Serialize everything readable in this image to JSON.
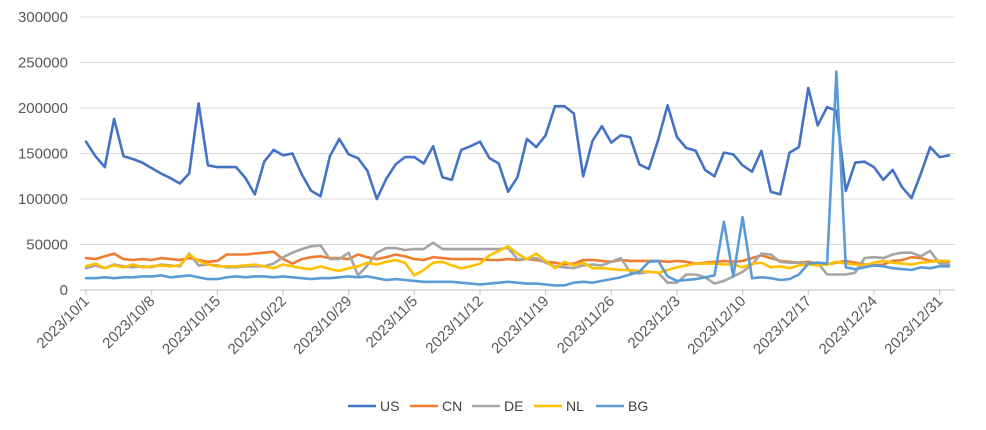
{
  "chart_data": {
    "type": "line",
    "title": "",
    "xlabel": "",
    "ylabel": "",
    "ylim": [
      0,
      300000
    ],
    "ytick_values": [
      0,
      50000,
      100000,
      150000,
      200000,
      250000,
      300000
    ],
    "ytick_labels": [
      "0",
      "50000",
      "100000",
      "150000",
      "200000",
      "250000",
      "300000"
    ],
    "x_tick_labels": [
      "2023/10/1",
      "2023/10/8",
      "2023/10/15",
      "2023/10/22",
      "2023/10/29",
      "2023/11/5",
      "2023/11/12",
      "2023/11/19",
      "2023/11/26",
      "2023/12/3",
      "2023/12/10",
      "2023/12/17",
      "2023/12/24",
      "2023/12/31"
    ],
    "x_tick_indices": [
      0,
      7,
      14,
      21,
      28,
      35,
      42,
      49,
      56,
      63,
      70,
      77,
      84,
      91
    ],
    "grid": "horizontal",
    "legend_position": "bottom",
    "series": [
      {
        "name": "US",
        "color": "#4472C4",
        "values": [
          163000,
          147000,
          135000,
          188000,
          147000,
          144000,
          140000,
          134000,
          128000,
          123000,
          117000,
          128000,
          205000,
          137000,
          135000,
          135000,
          135000,
          123000,
          105000,
          141000,
          154000,
          148000,
          150000,
          127000,
          109000,
          103000,
          147000,
          166000,
          149000,
          145000,
          131000,
          100000,
          122000,
          138000,
          146000,
          146000,
          139000,
          158000,
          124000,
          121000,
          154000,
          158000,
          163000,
          145000,
          139000,
          108000,
          124000,
          166000,
          157000,
          170000,
          202000,
          202000,
          194000,
          125000,
          164000,
          180000,
          162000,
          170000,
          168000,
          138000,
          133000,
          165000,
          203000,
          168000,
          156000,
          153000,
          132000,
          125000,
          151000,
          149000,
          137000,
          130000,
          153000,
          108000,
          105000,
          151000,
          157000,
          222000,
          181000,
          201000,
          197000,
          109000,
          140000,
          141000,
          135000,
          121000,
          132000,
          113000,
          101000,
          128000,
          157000,
          146000,
          148000
        ]
      },
      {
        "name": "CN",
        "color": "#ED7D31",
        "values": [
          35000,
          34000,
          37000,
          40000,
          34000,
          33000,
          34000,
          33000,
          35000,
          34000,
          33000,
          35000,
          33000,
          31000,
          32000,
          39000,
          39000,
          39000,
          40000,
          41000,
          42000,
          34000,
          29000,
          34000,
          36000,
          37000,
          35000,
          35000,
          34000,
          39000,
          36000,
          34000,
          36000,
          39000,
          37000,
          34000,
          33000,
          36000,
          35000,
          34000,
          34000,
          34000,
          34000,
          33000,
          33000,
          34000,
          33000,
          34000,
          33000,
          31000,
          30000,
          28000,
          29000,
          33000,
          33000,
          32000,
          31000,
          33000,
          32000,
          32000,
          32000,
          32000,
          31000,
          32000,
          31000,
          29000,
          30000,
          31000,
          32000,
          31000,
          32000,
          35000,
          38000,
          35000,
          32000,
          31000,
          30000,
          31000,
          29000,
          28000,
          30000,
          32000,
          30000,
          28000,
          27000,
          28000,
          32000,
          33000,
          36000,
          35000,
          32000,
          32000,
          31000
        ]
      },
      {
        "name": "DE",
        "color": "#A5A5A5",
        "values": [
          24000,
          27000,
          24000,
          28000,
          26000,
          25000,
          26000,
          25000,
          28000,
          27000,
          26000,
          40000,
          27000,
          28000,
          27000,
          25000,
          25000,
          26000,
          26000,
          26000,
          29000,
          36000,
          41000,
          45000,
          48000,
          49000,
          34000,
          34000,
          41000,
          16000,
          27000,
          41000,
          46000,
          46000,
          44000,
          45000,
          45000,
          52000,
          45000,
          45000,
          45000,
          45000,
          45000,
          45000,
          45000,
          46000,
          34000,
          34000,
          35000,
          30000,
          26000,
          25000,
          24000,
          27000,
          28000,
          27000,
          31000,
          35000,
          20000,
          18000,
          20000,
          19000,
          8000,
          8000,
          17000,
          17000,
          14000,
          7000,
          10000,
          15000,
          20000,
          28000,
          40000,
          39000,
          31000,
          30000,
          30000,
          29000,
          30000,
          17000,
          17000,
          17000,
          19000,
          35000,
          36000,
          35000,
          39000,
          41000,
          41000,
          37000,
          43000,
          29000,
          28000
        ]
      },
      {
        "name": "NL",
        "color": "#FFC000",
        "values": [
          26000,
          29000,
          24000,
          27000,
          25000,
          28000,
          25000,
          26000,
          27000,
          26000,
          27000,
          39000,
          32000,
          28000,
          26000,
          26000,
          26000,
          27000,
          28000,
          26000,
          24000,
          28000,
          26000,
          24000,
          23000,
          26000,
          23000,
          21000,
          24000,
          26000,
          30000,
          28000,
          31000,
          33000,
          30000,
          16000,
          22000,
          30000,
          31000,
          27000,
          24000,
          26000,
          29000,
          38000,
          43000,
          48000,
          40000,
          34000,
          40000,
          32000,
          24000,
          31000,
          27000,
          30000,
          24000,
          24000,
          23000,
          22000,
          22000,
          21000,
          20000,
          19000,
          22000,
          25000,
          27000,
          29000,
          29000,
          29000,
          28000,
          28000,
          25000,
          29000,
          30000,
          25000,
          26000,
          24000,
          27000,
          28000,
          27000,
          28000,
          31000,
          29000,
          28000,
          27000,
          30000,
          32000,
          30000,
          29000,
          28000,
          30000,
          31000,
          32000,
          32000
        ]
      },
      {
        "name": "BG",
        "color": "#5B9BD5",
        "values": [
          13000,
          13000,
          14000,
          13000,
          14000,
          14000,
          15000,
          15000,
          16000,
          14000,
          15000,
          16000,
          14000,
          12000,
          12000,
          14000,
          15000,
          14000,
          15000,
          15000,
          14000,
          15000,
          14000,
          13000,
          12000,
          13000,
          13000,
          14000,
          15000,
          14000,
          15000,
          13000,
          11000,
          12000,
          11000,
          10000,
          9000,
          9000,
          9000,
          9000,
          8000,
          7000,
          6000,
          7000,
          8000,
          9000,
          8000,
          7000,
          7000,
          6000,
          5000,
          5000,
          8000,
          9000,
          8000,
          10000,
          12000,
          14000,
          17000,
          20000,
          31000,
          32000,
          15000,
          10000,
          11000,
          12000,
          14000,
          16000,
          75000,
          15000,
          80000,
          13000,
          14000,
          13000,
          11000,
          12000,
          17000,
          29000,
          30000,
          29000,
          240000,
          25000,
          23000,
          25000,
          27000,
          26000,
          24000,
          23000,
          22000,
          25000,
          24000,
          26000,
          26000
        ]
      }
    ]
  }
}
